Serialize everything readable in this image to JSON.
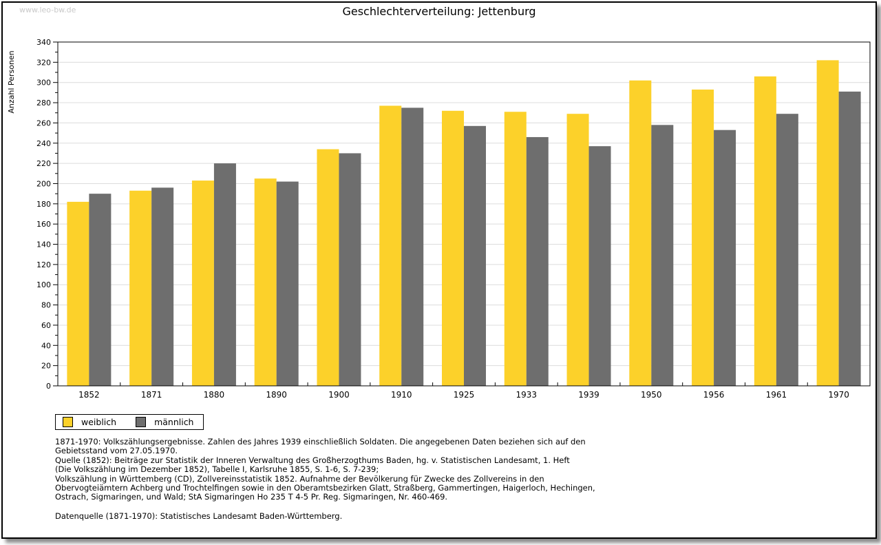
{
  "watermark": "www.leo-bw.de",
  "title": "Geschlechterverteilung: Jettenburg",
  "chart_data": {
    "type": "bar",
    "title": "Geschlechterverteilung: Jettenburg",
    "xlabel": "",
    "ylabel": "Anzahl Personen",
    "ylim": [
      0,
      340
    ],
    "ytick_step": 20,
    "yticks": [
      0,
      20,
      40,
      60,
      80,
      100,
      120,
      140,
      160,
      180,
      200,
      220,
      240,
      260,
      280,
      300,
      320,
      340
    ],
    "grid": true,
    "legend_position": "bottom-left",
    "categories": [
      "1852",
      "1871",
      "1880",
      "1890",
      "1900",
      "1910",
      "1925",
      "1933",
      "1939",
      "1950",
      "1956",
      "1961",
      "1970"
    ],
    "series": [
      {
        "name": "weiblich",
        "color": "#fcd12a",
        "values": [
          182,
          193,
          203,
          205,
          234,
          277,
          272,
          271,
          269,
          302,
          293,
          306,
          322
        ]
      },
      {
        "name": "männlich",
        "color": "#6e6e6e",
        "values": [
          190,
          196,
          220,
          202,
          230,
          275,
          257,
          246,
          237,
          258,
          253,
          269,
          291
        ]
      }
    ]
  },
  "footnote_lines": [
    "1871-1970: Volkszählungsergebnisse. Zahlen des Jahres 1939 einschließlich Soldaten. Die angegebenen Daten beziehen sich auf den",
    "Gebietsstand vom 27.05.1970.",
    "Quelle (1852): Beiträge zur Statistik der Inneren Verwaltung des Großherzogthums Baden, hg. v. Statistischen Landesamt, 1. Heft",
    "(Die Volkszählung im Dezember 1852), Tabelle I, Karlsruhe 1855, S. 1-6, S. 7-239;",
    "Volkszählung in Württemberg (CD), Zollvereinsstatistik 1852. Aufnahme der Bevölkerung für Zwecke des Zollvereins in den",
    "Obervogteiämtern Achberg und Trochtelfingen sowie in den Oberamtsbezirken Glatt, Straßberg, Gammertingen, Haigerloch, Hechingen,",
    "Ostrach, Sigmaringen, und Wald; StA Sigmaringen Ho 235 T 4-5 Pr. Reg. Sigmaringen, Nr. 460-469."
  ],
  "datasource_line": "Datenquelle (1871-1970): Statistisches Landesamt Baden-Württemberg.",
  "colors": {
    "grid": "#dcdcdc",
    "axis": "#000000",
    "watermark": "#c9c9c9"
  }
}
